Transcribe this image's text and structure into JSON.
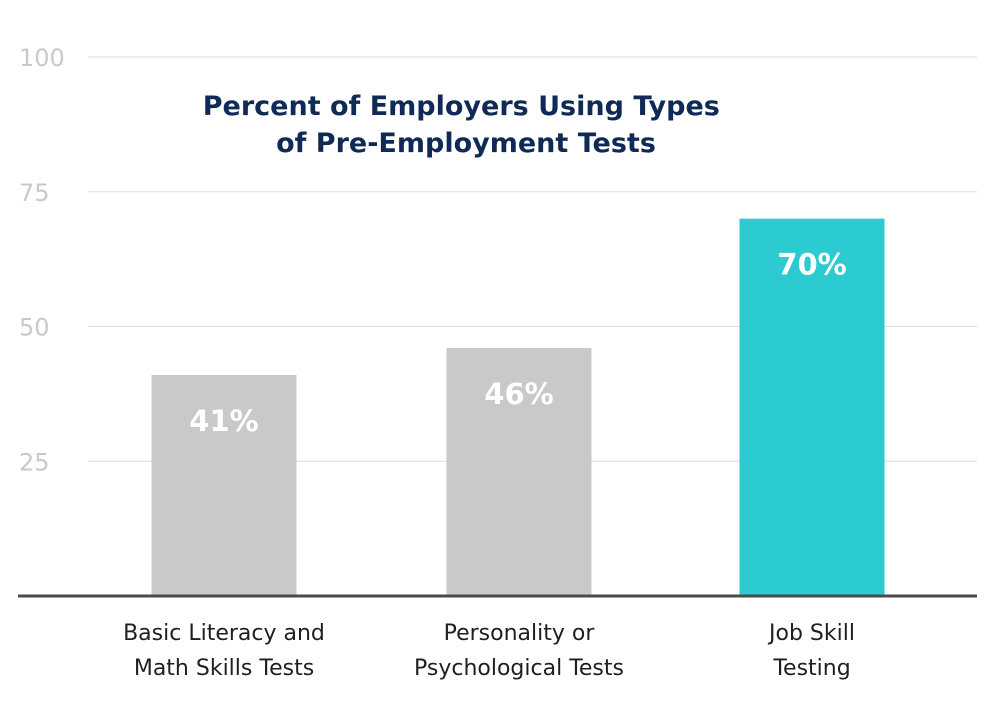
{
  "chart_data": {
    "type": "bar",
    "title": [
      "Percent of Employers Using Types",
      "of Pre-Employment Tests"
    ],
    "categories": [
      [
        "Basic Literacy and",
        "Math Skills Tests"
      ],
      [
        "Personality or",
        "Psychological Tests"
      ],
      [
        "Job Skill",
        "Testing"
      ]
    ],
    "values": [
      41,
      46,
      70
    ],
    "data_labels": [
      "41%",
      "46%",
      "70%"
    ],
    "ylim": [
      0,
      100
    ],
    "yticks": [
      25,
      50,
      75,
      100
    ],
    "ytick_labels": [
      "25",
      "50",
      "75",
      "100"
    ],
    "grid": true,
    "legend": "none",
    "xlabel": "",
    "ylabel": "",
    "colors": {
      "bars": [
        "#c8c9c8",
        "#c8c9c8",
        "#2bcbd1"
      ],
      "title": "#0f2a56",
      "grid": "#dedede",
      "axis": "#4a4a4a",
      "tick_text": "#c9c9c9",
      "data_label_text": "#ffffff",
      "category_text": "#1f1f1f"
    }
  }
}
